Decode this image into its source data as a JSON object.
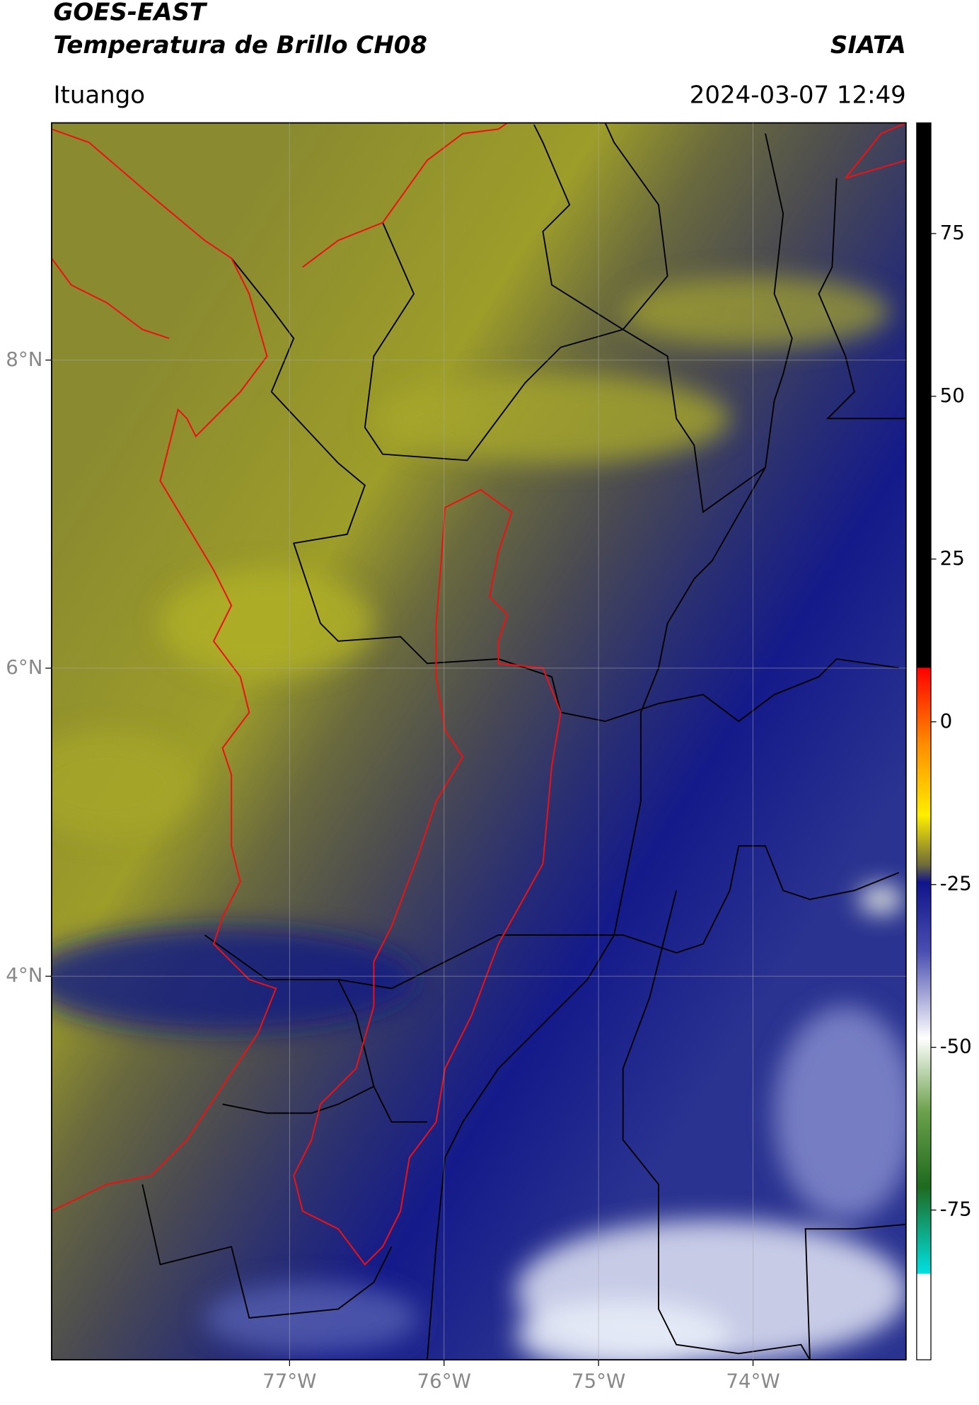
{
  "header": {
    "title": "GOES-EAST",
    "subtitle": "Temperatura de Brillo CH08",
    "source": "SIATA",
    "place": "Ituango",
    "datetime": "2024-03-07 12:49"
  },
  "map": {
    "xlim": [
      -78.54,
      -73.01
    ],
    "ylim": [
      1.51,
      9.54
    ],
    "xticks": [
      {
        "value": -77,
        "label": "77°W"
      },
      {
        "value": -76,
        "label": "76°W"
      },
      {
        "value": -75,
        "label": "75°W"
      },
      {
        "value": -74,
        "label": "74°W"
      }
    ],
    "yticks": [
      {
        "value": 4,
        "label": "4°N"
      },
      {
        "value": 6,
        "label": "6°N"
      },
      {
        "value": 8,
        "label": "8°N"
      }
    ],
    "grid": true
  },
  "colorbar": {
    "lim": [
      -98,
      92
    ],
    "ticks": [
      -75,
      -50,
      -25,
      0,
      25,
      50,
      75
    ]
  }
}
